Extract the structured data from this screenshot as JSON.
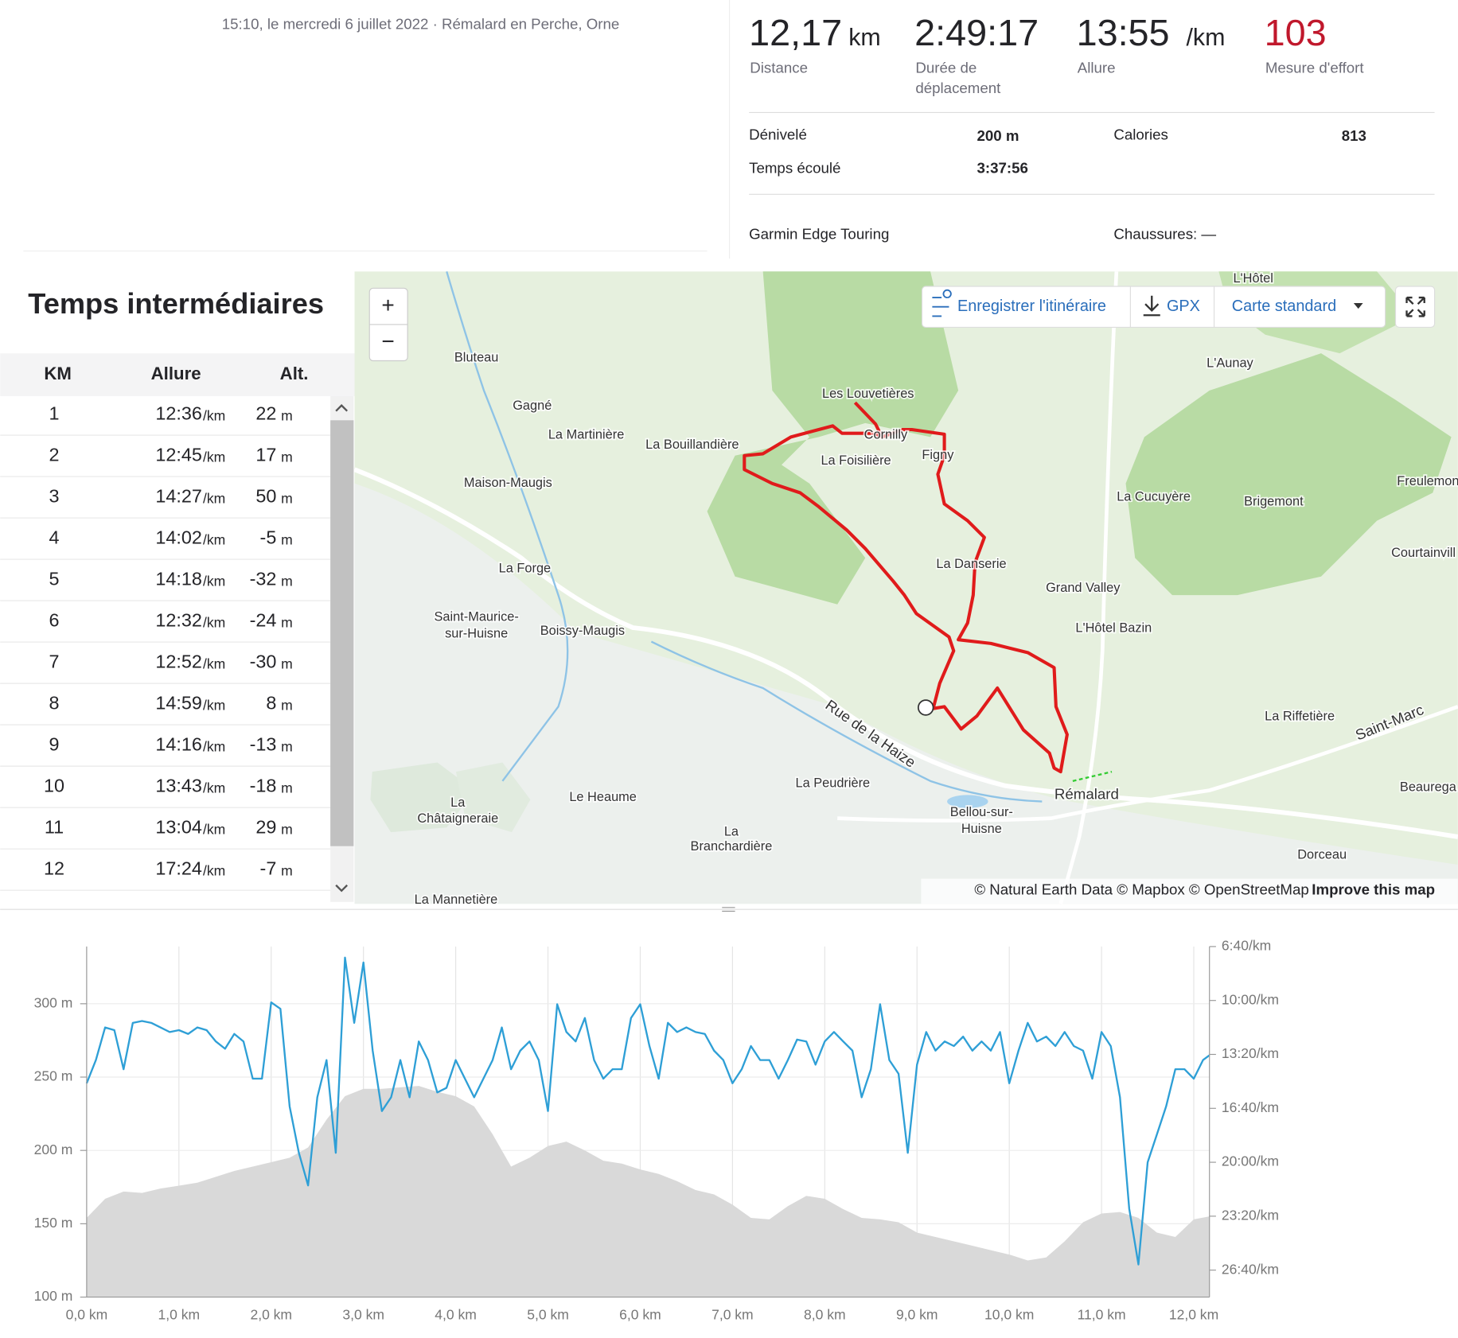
{
  "header": {
    "subtitle": "15:10, le mercredi 6 juillet 2022 · Rémalard en Perche, Orne"
  },
  "stats": {
    "distance": {
      "value": "12,17",
      "unit": "km",
      "label": "Distance"
    },
    "moving_time": {
      "value": "2:49:17",
      "label": [
        "Durée de",
        "déplacement"
      ]
    },
    "pace": {
      "value": "13:55",
      "unit": "/km",
      "label": "Allure"
    },
    "effort": {
      "value": "103",
      "label": "Mesure d'effort"
    }
  },
  "details": {
    "elevation_label": "Dénivelé",
    "elevation": "200 m",
    "calories_label": "Calories",
    "calories": "813",
    "elapsed_label": "Temps écoulé",
    "elapsed": "3:37:56",
    "device": "Garmin Edge Touring",
    "shoes": "Chaussures: —"
  },
  "splits": {
    "title": "Temps intermédiaires",
    "columns": [
      "KM",
      "Allure",
      "Alt."
    ],
    "pace_unit": "/km",
    "alt_unit": "m",
    "rows": [
      {
        "km": 1,
        "pace": "12:36",
        "alt": 22
      },
      {
        "km": 2,
        "pace": "12:45",
        "alt": 17
      },
      {
        "km": 3,
        "pace": "14:27",
        "alt": 50
      },
      {
        "km": 4,
        "pace": "14:02",
        "alt": -5
      },
      {
        "km": 5,
        "pace": "14:18",
        "alt": -32
      },
      {
        "km": 6,
        "pace": "12:32",
        "alt": -24
      },
      {
        "km": 7,
        "pace": "12:52",
        "alt": -30
      },
      {
        "km": 8,
        "pace": "14:59",
        "alt": 8
      },
      {
        "km": 9,
        "pace": "14:16",
        "alt": -13
      },
      {
        "km": 10,
        "pace": "13:43",
        "alt": -18
      },
      {
        "km": 11,
        "pace": "13:04",
        "alt": 29
      },
      {
        "km": 12,
        "pace": "17:24",
        "alt": -7
      }
    ]
  },
  "map": {
    "controls": {
      "zoom_in": "+",
      "zoom_out": "−",
      "save_route": "Enregistrer l'itinéraire",
      "gpx": "GPX",
      "style": "Carte standard"
    },
    "attribution": "© Natural Earth Data © Mapbox © OpenStreetMap",
    "improve": "Improve this map",
    "labels": [
      "Bluteau",
      "Gagné",
      "La Martinière",
      "La Bouillandière",
      "Les Louvetières",
      "Cornilly",
      "La Foisilière",
      "Figny",
      "Maison-Maugis",
      "La Cucuyère",
      "Brigemont",
      "Freulemon",
      "L'Aunay",
      "L'Hôtel",
      "La Forge",
      "La Danserie",
      "Grand Valley",
      "Courtainvill",
      "Saint-Maurice-",
      "sur-Huisne",
      "Boissy-Maugis",
      "L'Hôtel Bazin",
      "Rue de la Haize",
      "La Riffetière",
      "Saint-Marc",
      "La Peudrière",
      "Rémalard",
      "Beaurega",
      "Le Heaume",
      "La",
      "Châtaigneraie",
      "Bellou-sur-",
      "Huisne",
      "La",
      "Branchardière",
      "Dorceau",
      "La Mannetière"
    ]
  },
  "chart_data": {
    "type": "line",
    "xlim": [
      0,
      12.17
    ],
    "xticks": [
      {
        "value": 0,
        "label": "0,0 km"
      },
      {
        "value": 1,
        "label": "1,0 km"
      },
      {
        "value": 2,
        "label": "2,0 km"
      },
      {
        "value": 3,
        "label": "3,0 km"
      },
      {
        "value": 4,
        "label": "4,0 km"
      },
      {
        "value": 5,
        "label": "5,0 km"
      },
      {
        "value": 6,
        "label": "6,0 km"
      },
      {
        "value": 7,
        "label": "7,0 km"
      },
      {
        "value": 8,
        "label": "8,0 km"
      },
      {
        "value": 9,
        "label": "9,0 km"
      },
      {
        "value": 10,
        "label": "10,0 km"
      },
      {
        "value": 11,
        "label": "11,0 km"
      },
      {
        "value": 12,
        "label": "12,0 km"
      }
    ],
    "ylim": [
      100,
      339
    ],
    "yticks": [
      {
        "value": 100,
        "label": "100 m"
      },
      {
        "value": 150,
        "label": "150 m"
      },
      {
        "value": 200,
        "label": "200 m"
      },
      {
        "value": 250,
        "label": "250 m"
      },
      {
        "value": 300,
        "label": "300 m"
      }
    ],
    "y2lim": [
      1700,
      400
    ],
    "y2ticks": [
      {
        "value": 400,
        "label": "6:40/km"
      },
      {
        "value": 600,
        "label": "10:00/km"
      },
      {
        "value": 800,
        "label": "13:20/km"
      },
      {
        "value": 1000,
        "label": "16:40/km"
      },
      {
        "value": 1200,
        "label": "20:00/km"
      },
      {
        "value": 1400,
        "label": "23:20/km"
      },
      {
        "value": 1600,
        "label": "26:40/km"
      }
    ],
    "grid": true,
    "series": [
      {
        "type": "area",
        "color": "#d9d9d9",
        "x": [
          0,
          0.2,
          0.4,
          0.6,
          0.8,
          1,
          1.2,
          1.4,
          1.6,
          1.8,
          2,
          2.2,
          2.4,
          2.6,
          2.8,
          3,
          3.2,
          3.4,
          3.6,
          3.8,
          4,
          4.2,
          4.4,
          4.6,
          4.8,
          5,
          5.2,
          5.4,
          5.6,
          5.8,
          6,
          6.2,
          6.4,
          6.6,
          6.8,
          7,
          7.2,
          7.4,
          7.6,
          7.8,
          8,
          8.2,
          8.4,
          8.6,
          8.8,
          9,
          9.2,
          9.4,
          9.6,
          9.8,
          10,
          10.2,
          10.4,
          10.6,
          10.8,
          11,
          11.2,
          11.4,
          11.6,
          11.8,
          12,
          12.17
        ],
        "values": [
          154,
          167,
          172,
          171,
          174,
          176,
          178,
          182,
          186,
          189,
          192,
          195,
          202,
          221,
          237,
          242,
          242,
          243,
          244,
          240,
          237,
          230,
          211,
          189,
          195,
          203,
          206,
          200,
          193,
          191,
          187,
          184,
          179,
          173,
          170,
          163,
          154,
          153,
          162,
          169,
          167,
          160,
          154,
          153,
          151,
          144,
          141,
          138,
          135,
          132,
          129,
          125,
          127,
          138,
          151,
          157,
          158,
          154,
          144,
          141,
          153,
          155
        ]
      },
      {
        "type": "line",
        "axis": "y2",
        "color": "#2e9fd6",
        "x": [
          0,
          0.1,
          0.2,
          0.3,
          0.4,
          0.5,
          0.6,
          0.7,
          0.8,
          0.9,
          1,
          1.1,
          1.2,
          1.3,
          1.4,
          1.5,
          1.6,
          1.7,
          1.8,
          1.9,
          2,
          2.1,
          2.2,
          2.3,
          2.4,
          2.5,
          2.6,
          2.7,
          2.8,
          2.9,
          3,
          3.1,
          3.2,
          3.3,
          3.4,
          3.5,
          3.6,
          3.7,
          3.8,
          3.9,
          4,
          4.1,
          4.2,
          4.3,
          4.4,
          4.5,
          4.6,
          4.7,
          4.8,
          4.9,
          5,
          5.1,
          5.2,
          5.3,
          5.4,
          5.5,
          5.6,
          5.7,
          5.8,
          5.9,
          6,
          6.1,
          6.2,
          6.3,
          6.4,
          6.5,
          6.6,
          6.7,
          6.8,
          6.9,
          7,
          7.1,
          7.2,
          7.3,
          7.4,
          7.5,
          7.6,
          7.7,
          7.8,
          7.9,
          8,
          8.1,
          8.2,
          8.3,
          8.4,
          8.5,
          8.6,
          8.7,
          8.8,
          8.9,
          9,
          9.1,
          9.2,
          9.3,
          9.4,
          9.5,
          9.6,
          9.7,
          9.8,
          9.9,
          10,
          10.1,
          10.2,
          10.3,
          10.4,
          10.5,
          10.6,
          10.7,
          10.8,
          10.9,
          11,
          11.1,
          11.2,
          11.3,
          11.4,
          11.5,
          11.6,
          11.7,
          11.8,
          11.9,
          12,
          12.1,
          12.17
        ],
        "values": [
          907,
          821,
          700,
          710,
          855,
          683,
          676,
          683,
          700,
          717,
          710,
          724,
          700,
          710,
          752,
          779,
          724,
          752,
          890,
          890,
          607,
          631,
          993,
          1165,
          1286,
          959,
          821,
          1165,
          441,
          683,
          459,
          786,
          1010,
          959,
          821,
          959,
          752,
          821,
          941,
          924,
          821,
          890,
          959,
          890,
          821,
          700,
          855,
          786,
          752,
          821,
          1010,
          614,
          717,
          752,
          665,
          821,
          890,
          855,
          855,
          665,
          614,
          769,
          890,
          683,
          717,
          700,
          717,
          724,
          786,
          821,
          907,
          855,
          769,
          821,
          821,
          890,
          821,
          745,
          752,
          838,
          752,
          717,
          752,
          786,
          959,
          855,
          614,
          821,
          872,
          1165,
          838,
          717,
          786,
          752,
          769,
          734,
          786,
          752,
          786,
          717,
          907,
          786,
          683,
          752,
          734,
          769,
          717,
          769,
          786,
          890,
          717,
          769,
          959,
          1372,
          1579,
          1200,
          1097,
          993,
          855,
          855,
          890,
          821,
          803
        ]
      }
    ]
  }
}
